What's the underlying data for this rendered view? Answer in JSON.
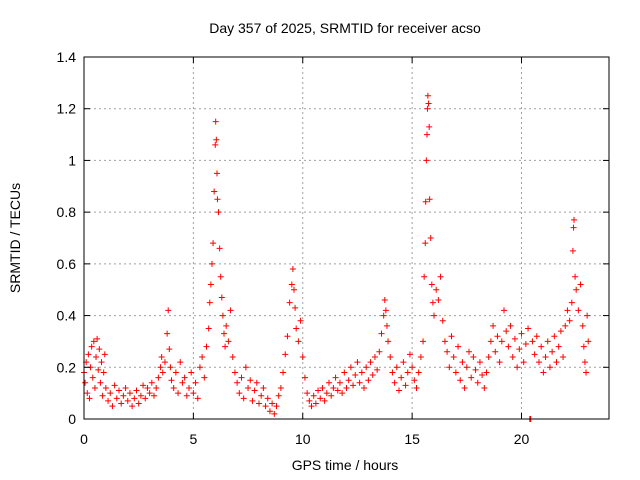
{
  "chart_data": {
    "type": "scatter",
    "title": "Day 357 of 2025, SRMTID for receiver acso",
    "xlabel": "GPS time / hours",
    "ylabel": "SRMTID / TECUs",
    "xlim": [
      0,
      24
    ],
    "ylim": [
      0,
      1.4
    ],
    "xticks": [
      0,
      5,
      10,
      15,
      20
    ],
    "xtick_labels": [
      "0",
      "5",
      "10",
      "15",
      "20"
    ],
    "yticks": [
      0,
      0.2,
      0.4,
      0.6,
      0.8,
      1.0,
      1.2,
      1.4
    ],
    "ytick_labels": [
      "0",
      "0.2",
      "0.4",
      "0.6",
      "0.8",
      "1",
      "1.2",
      "1.4"
    ],
    "grid": true,
    "marker": "plus",
    "color": "#ff0000",
    "series": [
      {
        "name": "SRMTID",
        "points": [
          [
            0.0,
            0.18
          ],
          [
            0.05,
            0.14
          ],
          [
            0.1,
            0.22
          ],
          [
            0.15,
            0.1
          ],
          [
            0.2,
            0.25
          ],
          [
            0.25,
            0.08
          ],
          [
            0.3,
            0.2
          ],
          [
            0.35,
            0.28
          ],
          [
            0.4,
            0.16
          ],
          [
            0.45,
            0.3
          ],
          [
            0.5,
            0.12
          ],
          [
            0.55,
            0.24
          ],
          [
            0.6,
            0.31
          ],
          [
            0.65,
            0.19
          ],
          [
            0.7,
            0.27
          ],
          [
            0.75,
            0.14
          ],
          [
            0.8,
            0.22
          ],
          [
            0.85,
            0.09
          ],
          [
            0.9,
            0.18
          ],
          [
            0.95,
            0.25
          ],
          [
            1.0,
            0.12
          ],
          [
            1.1,
            0.07
          ],
          [
            1.2,
            0.1
          ],
          [
            1.3,
            0.05
          ],
          [
            1.4,
            0.13
          ],
          [
            1.5,
            0.08
          ],
          [
            1.6,
            0.11
          ],
          [
            1.7,
            0.06
          ],
          [
            1.8,
            0.09
          ],
          [
            1.9,
            0.12
          ],
          [
            2.0,
            0.07
          ],
          [
            2.1,
            0.1
          ],
          [
            2.2,
            0.05
          ],
          [
            2.3,
            0.08
          ],
          [
            2.4,
            0.11
          ],
          [
            2.5,
            0.06
          ],
          [
            2.6,
            0.09
          ],
          [
            2.7,
            0.13
          ],
          [
            2.8,
            0.08
          ],
          [
            2.9,
            0.12
          ],
          [
            3.0,
            0.1
          ],
          [
            3.1,
            0.14
          ],
          [
            3.2,
            0.09
          ],
          [
            3.3,
            0.12
          ],
          [
            3.4,
            0.16
          ],
          [
            3.5,
            0.2
          ],
          [
            3.55,
            0.24
          ],
          [
            3.6,
            0.18
          ],
          [
            3.7,
            0.22
          ],
          [
            3.8,
            0.33
          ],
          [
            3.85,
            0.42
          ],
          [
            3.9,
            0.27
          ],
          [
            3.95,
            0.2
          ],
          [
            4.0,
            0.15
          ],
          [
            4.1,
            0.12
          ],
          [
            4.2,
            0.18
          ],
          [
            4.3,
            0.1
          ],
          [
            4.4,
            0.22
          ],
          [
            4.5,
            0.14
          ],
          [
            4.6,
            0.16
          ],
          [
            4.7,
            0.09
          ],
          [
            4.8,
            0.12
          ],
          [
            4.9,
            0.18
          ],
          [
            5.0,
            0.1
          ],
          [
            5.1,
            0.14
          ],
          [
            5.2,
            0.08
          ],
          [
            5.3,
            0.2
          ],
          [
            5.4,
            0.24
          ],
          [
            5.5,
            0.16
          ],
          [
            5.6,
            0.28
          ],
          [
            5.7,
            0.35
          ],
          [
            5.75,
            0.45
          ],
          [
            5.8,
            0.52
          ],
          [
            5.85,
            0.6
          ],
          [
            5.9,
            0.68
          ],
          [
            5.95,
            0.88
          ],
          [
            6.0,
            1.06
          ],
          [
            6.02,
            1.15
          ],
          [
            6.05,
            1.08
          ],
          [
            6.08,
            0.95
          ],
          [
            6.1,
            0.85
          ],
          [
            6.15,
            0.8
          ],
          [
            6.2,
            0.66
          ],
          [
            6.25,
            0.55
          ],
          [
            6.3,
            0.47
          ],
          [
            6.35,
            0.4
          ],
          [
            6.4,
            0.33
          ],
          [
            6.45,
            0.28
          ],
          [
            6.5,
            0.36
          ],
          [
            6.6,
            0.3
          ],
          [
            6.7,
            0.42
          ],
          [
            6.8,
            0.24
          ],
          [
            6.9,
            0.18
          ],
          [
            7.0,
            0.14
          ],
          [
            7.1,
            0.1
          ],
          [
            7.2,
            0.16
          ],
          [
            7.3,
            0.08
          ],
          [
            7.4,
            0.2
          ],
          [
            7.5,
            0.12
          ],
          [
            7.6,
            0.15
          ],
          [
            7.7,
            0.07
          ],
          [
            7.8,
            0.11
          ],
          [
            7.9,
            0.14
          ],
          [
            8.0,
            0.06
          ],
          [
            8.1,
            0.09
          ],
          [
            8.2,
            0.12
          ],
          [
            8.3,
            0.05
          ],
          [
            8.4,
            0.08
          ],
          [
            8.5,
            0.03
          ],
          [
            8.6,
            0.06
          ],
          [
            8.7,
            0.02
          ],
          [
            8.8,
            0.05
          ],
          [
            8.9,
            0.09
          ],
          [
            9.0,
            0.12
          ],
          [
            9.1,
            0.18
          ],
          [
            9.2,
            0.25
          ],
          [
            9.3,
            0.32
          ],
          [
            9.4,
            0.45
          ],
          [
            9.5,
            0.52
          ],
          [
            9.55,
            0.58
          ],
          [
            9.6,
            0.5
          ],
          [
            9.65,
            0.43
          ],
          [
            9.7,
            0.35
          ],
          [
            9.8,
            0.3
          ],
          [
            9.9,
            0.38
          ],
          [
            10.0,
            0.24
          ],
          [
            10.1,
            0.16
          ],
          [
            10.2,
            0.1
          ],
          [
            10.3,
            0.07
          ],
          [
            10.4,
            0.05
          ],
          [
            10.5,
            0.09
          ],
          [
            10.6,
            0.06
          ],
          [
            10.7,
            0.11
          ],
          [
            10.8,
            0.08
          ],
          [
            10.9,
            0.12
          ],
          [
            11.0,
            0.07
          ],
          [
            11.1,
            0.1
          ],
          [
            11.2,
            0.14
          ],
          [
            11.3,
            0.09
          ],
          [
            11.4,
            0.12
          ],
          [
            11.5,
            0.16
          ],
          [
            11.6,
            0.11
          ],
          [
            11.7,
            0.14
          ],
          [
            11.8,
            0.1
          ],
          [
            11.9,
            0.18
          ],
          [
            12.0,
            0.12
          ],
          [
            12.1,
            0.15
          ],
          [
            12.2,
            0.2
          ],
          [
            12.3,
            0.13
          ],
          [
            12.4,
            0.17
          ],
          [
            12.5,
            0.22
          ],
          [
            12.6,
            0.14
          ],
          [
            12.7,
            0.18
          ],
          [
            12.8,
            0.12
          ],
          [
            12.9,
            0.2
          ],
          [
            13.0,
            0.15
          ],
          [
            13.1,
            0.22
          ],
          [
            13.2,
            0.17
          ],
          [
            13.3,
            0.24
          ],
          [
            13.4,
            0.19
          ],
          [
            13.5,
            0.26
          ],
          [
            13.6,
            0.33
          ],
          [
            13.7,
            0.4
          ],
          [
            13.75,
            0.46
          ],
          [
            13.8,
            0.42
          ],
          [
            13.85,
            0.36
          ],
          [
            13.9,
            0.3
          ],
          [
            14.0,
            0.24
          ],
          [
            14.1,
            0.18
          ],
          [
            14.2,
            0.14
          ],
          [
            14.3,
            0.2
          ],
          [
            14.4,
            0.11
          ],
          [
            14.5,
            0.16
          ],
          [
            14.6,
            0.22
          ],
          [
            14.7,
            0.13
          ],
          [
            14.8,
            0.18
          ],
          [
            14.9,
            0.25
          ],
          [
            15.0,
            0.2
          ],
          [
            15.1,
            0.15
          ],
          [
            15.2,
            0.12
          ],
          [
            15.3,
            0.18
          ],
          [
            15.4,
            0.24
          ],
          [
            15.5,
            0.3
          ],
          [
            15.55,
            0.55
          ],
          [
            15.6,
            0.68
          ],
          [
            15.62,
            0.84
          ],
          [
            15.65,
            1.0
          ],
          [
            15.68,
            1.1
          ],
          [
            15.7,
            1.2
          ],
          [
            15.72,
            1.25
          ],
          [
            15.75,
            1.22
          ],
          [
            15.78,
            1.13
          ],
          [
            15.8,
            0.85
          ],
          [
            15.85,
            0.7
          ],
          [
            15.9,
            0.52
          ],
          [
            15.95,
            0.45
          ],
          [
            16.0,
            0.4
          ],
          [
            16.1,
            0.5
          ],
          [
            16.2,
            0.46
          ],
          [
            16.3,
            0.55
          ],
          [
            16.4,
            0.38
          ],
          [
            16.5,
            0.3
          ],
          [
            16.6,
            0.26
          ],
          [
            16.7,
            0.2
          ],
          [
            16.8,
            0.32
          ],
          [
            16.9,
            0.24
          ],
          [
            17.0,
            0.18
          ],
          [
            17.1,
            0.28
          ],
          [
            17.2,
            0.15
          ],
          [
            17.3,
            0.22
          ],
          [
            17.4,
            0.12
          ],
          [
            17.5,
            0.2
          ],
          [
            17.6,
            0.26
          ],
          [
            17.7,
            0.16
          ],
          [
            17.8,
            0.24
          ],
          [
            17.9,
            0.19
          ],
          [
            18.0,
            0.14
          ],
          [
            18.1,
            0.22
          ],
          [
            18.2,
            0.17
          ],
          [
            18.3,
            0.12
          ],
          [
            18.4,
            0.18
          ],
          [
            18.5,
            0.24
          ],
          [
            18.6,
            0.3
          ],
          [
            18.7,
            0.36
          ],
          [
            18.8,
            0.26
          ],
          [
            18.9,
            0.32
          ],
          [
            19.0,
            0.22
          ],
          [
            19.1,
            0.3
          ],
          [
            19.2,
            0.42
          ],
          [
            19.3,
            0.34
          ],
          [
            19.4,
            0.28
          ],
          [
            19.5,
            0.36
          ],
          [
            19.6,
            0.24
          ],
          [
            19.7,
            0.31
          ],
          [
            19.8,
            0.2
          ],
          [
            19.9,
            0.27
          ],
          [
            20.0,
            0.33
          ],
          [
            20.1,
            0.22
          ],
          [
            20.2,
            0.29
          ],
          [
            20.3,
            0.35
          ],
          [
            20.5,
            0.3
          ],
          [
            20.6,
            0.25
          ],
          [
            20.7,
            0.32
          ],
          [
            20.8,
            0.22
          ],
          [
            20.9,
            0.28
          ],
          [
            21.0,
            0.18
          ],
          [
            21.1,
            0.24
          ],
          [
            21.2,
            0.3
          ],
          [
            21.3,
            0.2
          ],
          [
            21.4,
            0.26
          ],
          [
            21.5,
            0.32
          ],
          [
            21.6,
            0.22
          ],
          [
            21.7,
            0.28
          ],
          [
            21.8,
            0.34
          ],
          [
            21.9,
            0.24
          ],
          [
            22.0,
            0.36
          ],
          [
            22.1,
            0.42
          ],
          [
            22.2,
            0.38
          ],
          [
            22.3,
            0.45
          ],
          [
            22.35,
            0.65
          ],
          [
            22.38,
            0.74
          ],
          [
            22.4,
            0.77
          ],
          [
            22.45,
            0.55
          ],
          [
            22.5,
            0.5
          ],
          [
            22.6,
            0.42
          ],
          [
            22.7,
            0.52
          ],
          [
            22.8,
            0.36
          ],
          [
            22.85,
            0.28
          ],
          [
            22.9,
            0.22
          ],
          [
            22.95,
            0.18
          ],
          [
            23.0,
            0.4
          ],
          [
            23.05,
            0.3
          ],
          [
            20.38,
            0.0
          ],
          [
            20.4,
            0.0
          ],
          [
            20.42,
            0.0
          ]
        ]
      }
    ]
  }
}
